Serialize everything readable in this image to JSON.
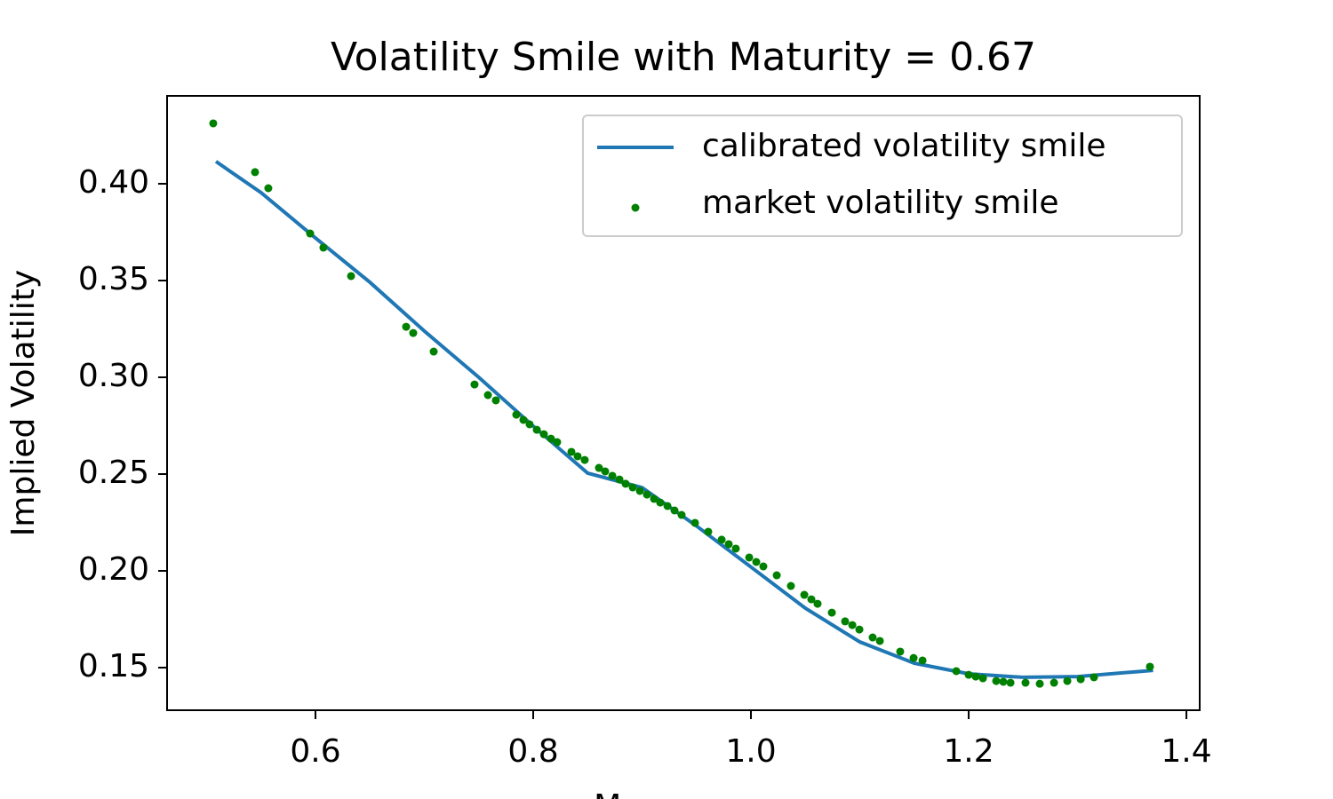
{
  "chart_data": {
    "type": "line_scatter",
    "title": "Volatility Smile with Maturity = 0.67",
    "xlabel": "Moneyness",
    "ylabel": "Implied Volatility",
    "xlim": [
      0.4637,
      1.4122
    ],
    "ylim": [
      0.128,
      0.4454
    ],
    "xticks": [
      {
        "value": 0.6,
        "label": "0.6"
      },
      {
        "value": 0.8,
        "label": "0.8"
      },
      {
        "value": 1.0,
        "label": "1.0"
      },
      {
        "value": 1.2,
        "label": "1.2"
      },
      {
        "value": 1.4,
        "label": "1.4"
      }
    ],
    "yticks": [
      {
        "value": 0.15,
        "label": "0.15"
      },
      {
        "value": 0.2,
        "label": "0.20"
      },
      {
        "value": 0.25,
        "label": "0.25"
      },
      {
        "value": 0.3,
        "label": "0.30"
      },
      {
        "value": 0.35,
        "label": "0.35"
      },
      {
        "value": 0.4,
        "label": "0.40"
      }
    ],
    "legend": "upper right",
    "series": [
      {
        "name": "calibrated volatility smile",
        "kind": "line",
        "color": "#1f77b4",
        "x": [
          0.5086,
          0.55,
          0.6,
          0.65,
          0.7,
          0.75,
          0.8,
          0.85,
          0.9,
          0.95,
          1.0,
          1.05,
          1.1,
          1.15,
          1.2,
          1.25,
          1.3,
          1.3694
        ],
        "values": [
          0.4115,
          0.3954,
          0.372,
          0.3491,
          0.3239,
          0.3,
          0.2748,
          0.2505,
          0.243,
          0.2232,
          0.202,
          0.1807,
          0.1633,
          0.1523,
          0.1468,
          0.145,
          0.1454,
          0.1486
        ]
      },
      {
        "name": "market volatility smile",
        "kind": "scatter",
        "color": "#008000",
        "x": [
          0.5061,
          0.5445,
          0.5567,
          0.5951,
          0.6073,
          0.6327,
          0.6833,
          0.6898,
          0.7086,
          0.7461,
          0.7584,
          0.7657,
          0.7845,
          0.791,
          0.7967,
          0.8033,
          0.8098,
          0.8163,
          0.822,
          0.8351,
          0.8408,
          0.8473,
          0.8604,
          0.8661,
          0.8727,
          0.8792,
          0.8849,
          0.8914,
          0.898,
          0.9045,
          0.911,
          0.9167,
          0.9233,
          0.9298,
          0.9363,
          0.9486,
          0.9608,
          0.9731,
          0.9796,
          0.9861,
          0.9984,
          1.0049,
          1.0114,
          1.0237,
          1.0367,
          1.049,
          1.0555,
          1.0612,
          1.0743,
          1.0865,
          1.0931,
          1.0996,
          1.1118,
          1.1184,
          1.1371,
          1.1494,
          1.1576,
          1.1886,
          1.2,
          1.2065,
          1.2131,
          1.2253,
          1.2318,
          1.2384,
          1.2522,
          1.2653,
          1.2784,
          1.2906,
          1.3029,
          1.3151,
          1.3665
        ],
        "values": [
          0.4312,
          0.406,
          0.3977,
          0.3743,
          0.367,
          0.3523,
          0.3261,
          0.3229,
          0.3133,
          0.2963,
          0.2908,
          0.2881,
          0.2807,
          0.278,
          0.2757,
          0.2729,
          0.2706,
          0.2683,
          0.2665,
          0.2615,
          0.2592,
          0.2573,
          0.2532,
          0.2514,
          0.2491,
          0.2472,
          0.245,
          0.2431,
          0.2413,
          0.2394,
          0.2372,
          0.2353,
          0.2335,
          0.2312,
          0.2289,
          0.2248,
          0.2202,
          0.2161,
          0.2138,
          0.2115,
          0.2069,
          0.2046,
          0.2023,
          0.1977,
          0.1922,
          0.1876,
          0.1853,
          0.183,
          0.1784,
          0.1739,
          0.172,
          0.1697,
          0.1656,
          0.1638,
          0.1583,
          0.155,
          0.1537,
          0.1482,
          0.1463,
          0.1454,
          0.1445,
          0.1431,
          0.1427,
          0.1422,
          0.1422,
          0.1417,
          0.1422,
          0.1431,
          0.144,
          0.145,
          0.1505
        ]
      }
    ]
  }
}
